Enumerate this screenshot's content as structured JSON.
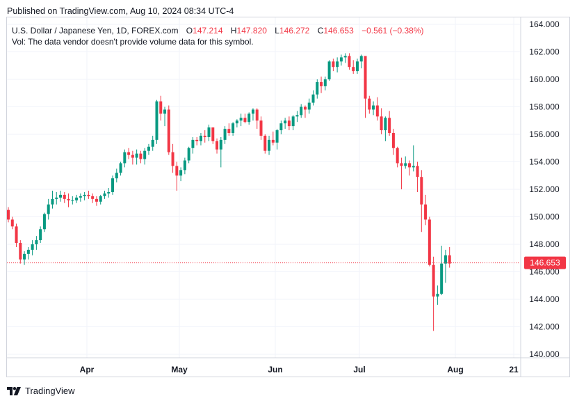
{
  "header": {
    "published": "Published on TradingView.com, Aug 10, 2024 08:34 UTC-4"
  },
  "legend": {
    "symbol": "U.S. Dollar / Japanese Yen, 1D, FOREX.com",
    "o_label": "O",
    "o_value": "147.214",
    "h_label": "H",
    "h_value": "147.820",
    "l_label": "L",
    "l_value": "146.272",
    "c_label": "C",
    "c_value": "146.653",
    "change": "−0.561 (−0.38%)",
    "volume_note": "Vol: The data vendor doesn't provide volume data for this symbol."
  },
  "footer": {
    "brand": "TradingView"
  },
  "colors": {
    "up": "#089981",
    "down": "#f23645",
    "grid": "#f0f3fa",
    "border": "#d1d4dc",
    "last_price": "#f23645"
  },
  "chart_data": {
    "type": "candlestick",
    "y_ticks": [
      "164.000",
      "162.000",
      "160.000",
      "158.000",
      "156.000",
      "154.000",
      "152.000",
      "150.000",
      "148.000",
      "146.000",
      "144.000",
      "142.000",
      "140.000"
    ],
    "x_ticks": [
      "Apr",
      "May",
      "Jun",
      "Jul",
      "Aug",
      "21"
    ],
    "last_price": 146.653,
    "last_price_label": "146.653",
    "candles": [
      [
        150.5,
        150.7,
        149.6,
        149.8
      ],
      [
        149.8,
        150.0,
        149.1,
        149.3
      ],
      [
        149.3,
        149.5,
        147.8,
        148.1
      ],
      [
        148.1,
        148.3,
        146.6,
        146.9
      ],
      [
        146.9,
        147.5,
        146.5,
        147.3
      ],
      [
        147.3,
        147.8,
        146.9,
        147.6
      ],
      [
        147.6,
        148.3,
        147.2,
        148.0
      ],
      [
        148.0,
        148.6,
        147.6,
        148.3
      ],
      [
        148.3,
        149.3,
        148.1,
        149.1
      ],
      [
        149.1,
        150.3,
        148.9,
        150.2
      ],
      [
        150.2,
        151.3,
        149.8,
        150.9
      ],
      [
        150.9,
        151.9,
        150.6,
        151.3
      ],
      [
        151.3,
        151.8,
        150.9,
        151.4
      ],
      [
        151.4,
        151.9,
        151.1,
        151.6
      ],
      [
        151.6,
        151.8,
        151.0,
        151.3
      ],
      [
        151.3,
        151.7,
        150.7,
        151.2
      ],
      [
        151.2,
        151.5,
        150.9,
        151.2
      ],
      [
        151.2,
        151.6,
        151.0,
        151.4
      ],
      [
        151.4,
        151.7,
        151.1,
        151.5
      ],
      [
        151.5,
        151.8,
        151.2,
        151.6
      ],
      [
        151.6,
        151.9,
        151.3,
        151.5
      ],
      [
        151.5,
        151.7,
        151.0,
        151.3
      ],
      [
        151.3,
        151.5,
        150.8,
        151.1
      ],
      [
        151.1,
        151.6,
        150.9,
        151.5
      ],
      [
        151.5,
        151.9,
        151.3,
        151.7
      ],
      [
        151.7,
        152.1,
        151.4,
        151.8
      ],
      [
        151.8,
        153.0,
        151.6,
        152.8
      ],
      [
        152.8,
        153.5,
        152.5,
        153.2
      ],
      [
        153.2,
        154.0,
        153.0,
        153.9
      ],
      [
        153.9,
        154.9,
        153.6,
        154.7
      ],
      [
        154.7,
        155.0,
        154.2,
        154.5
      ],
      [
        154.5,
        154.8,
        153.8,
        154.3
      ],
      [
        154.3,
        154.9,
        153.8,
        154.6
      ],
      [
        154.6,
        154.8,
        153.9,
        154.2
      ],
      [
        154.2,
        155.0,
        153.8,
        154.8
      ],
      [
        154.8,
        155.3,
        154.5,
        155.1
      ],
      [
        155.1,
        155.9,
        154.8,
        155.6
      ],
      [
        155.6,
        158.5,
        155.3,
        158.4
      ],
      [
        158.4,
        158.8,
        157.0,
        157.5
      ],
      [
        157.5,
        158.0,
        156.6,
        157.8
      ],
      [
        157.8,
        158.1,
        154.5,
        154.7
      ],
      [
        154.7,
        155.3,
        153.2,
        153.7
      ],
      [
        153.7,
        154.0,
        151.9,
        153.0
      ],
      [
        153.0,
        153.6,
        152.6,
        153.4
      ],
      [
        153.4,
        154.3,
        153.1,
        154.1
      ],
      [
        154.1,
        155.1,
        153.9,
        155.0
      ],
      [
        155.0,
        155.8,
        154.6,
        155.6
      ],
      [
        155.6,
        155.8,
        155.2,
        155.5
      ],
      [
        155.5,
        156.1,
        155.2,
        155.9
      ],
      [
        155.9,
        156.3,
        155.4,
        155.8
      ],
      [
        155.8,
        156.7,
        155.5,
        156.5
      ],
      [
        156.5,
        156.4,
        155.3,
        155.5
      ],
      [
        155.5,
        155.7,
        154.6,
        154.9
      ],
      [
        154.9,
        155.8,
        153.6,
        155.6
      ],
      [
        155.6,
        156.6,
        155.3,
        156.4
      ],
      [
        156.4,
        156.8,
        155.9,
        156.1
      ],
      [
        156.1,
        156.9,
        155.9,
        156.8
      ],
      [
        156.8,
        157.1,
        156.5,
        157.0
      ],
      [
        157.0,
        157.5,
        156.6,
        157.2
      ],
      [
        157.2,
        157.5,
        156.8,
        156.9
      ],
      [
        156.9,
        157.6,
        156.7,
        157.5
      ],
      [
        157.5,
        157.9,
        157.0,
        157.8
      ],
      [
        157.8,
        157.9,
        156.4,
        157.0
      ],
      [
        157.0,
        157.3,
        155.6,
        155.9
      ],
      [
        155.9,
        156.0,
        154.6,
        154.8
      ],
      [
        154.8,
        155.9,
        154.5,
        155.6
      ],
      [
        155.6,
        156.2,
        155.2,
        155.4
      ],
      [
        155.4,
        156.4,
        154.9,
        156.3
      ],
      [
        156.3,
        157.0,
        156.0,
        156.8
      ],
      [
        156.8,
        157.2,
        156.4,
        157.0
      ],
      [
        157.0,
        157.3,
        156.3,
        156.6
      ],
      [
        156.6,
        157.4,
        156.3,
        157.3
      ],
      [
        157.3,
        157.7,
        156.9,
        157.4
      ],
      [
        157.4,
        158.2,
        157.2,
        158.0
      ],
      [
        158.0,
        158.1,
        157.2,
        157.8
      ],
      [
        157.8,
        158.6,
        157.5,
        158.3
      ],
      [
        158.3,
        159.2,
        158.1,
        158.9
      ],
      [
        158.9,
        160.0,
        158.6,
        159.8
      ],
      [
        159.8,
        160.2,
        159.0,
        159.5
      ],
      [
        159.5,
        160.2,
        159.2,
        160.0
      ],
      [
        160.0,
        161.4,
        159.9,
        161.3
      ],
      [
        161.3,
        161.5,
        160.6,
        160.9
      ],
      [
        160.9,
        161.6,
        160.5,
        161.3
      ],
      [
        161.3,
        161.8,
        161.0,
        161.6
      ],
      [
        161.6,
        161.9,
        161.2,
        161.7
      ],
      [
        161.7,
        161.9,
        160.7,
        160.9
      ],
      [
        160.9,
        161.4,
        160.4,
        160.6
      ],
      [
        160.6,
        161.5,
        160.4,
        161.3
      ],
      [
        161.3,
        161.8,
        160.8,
        161.7
      ],
      [
        161.7,
        161.6,
        157.2,
        158.6
      ],
      [
        158.6,
        158.8,
        157.5,
        157.8
      ],
      [
        157.8,
        158.4,
        157.4,
        158.1
      ],
      [
        158.1,
        158.7,
        157.0,
        157.3
      ],
      [
        157.3,
        157.9,
        156.0,
        156.3
      ],
      [
        156.3,
        157.3,
        155.5,
        157.2
      ],
      [
        157.2,
        157.7,
        155.9,
        156.1
      ],
      [
        156.1,
        156.4,
        154.5,
        155.0
      ],
      [
        155.0,
        155.1,
        153.6,
        153.9
      ],
      [
        153.9,
        154.3,
        152.0,
        153.7
      ],
      [
        153.7,
        154.4,
        153.5,
        153.9
      ],
      [
        153.9,
        154.1,
        153.0,
        153.6
      ],
      [
        153.6,
        155.2,
        153.3,
        153.7
      ],
      [
        153.7,
        154.0,
        151.8,
        152.9
      ],
      [
        152.9,
        153.4,
        148.9,
        150.9
      ],
      [
        150.9,
        151.6,
        149.4,
        149.8
      ],
      [
        149.8,
        150.0,
        146.4,
        146.5
      ],
      [
        146.5,
        147.1,
        141.7,
        144.2
      ],
      [
        144.2,
        145.0,
        143.6,
        144.4
      ],
      [
        144.4,
        147.9,
        144.3,
        146.6
      ],
      [
        146.6,
        147.6,
        145.2,
        147.2
      ],
      [
        147.2,
        147.8,
        146.3,
        146.6
      ]
    ]
  }
}
